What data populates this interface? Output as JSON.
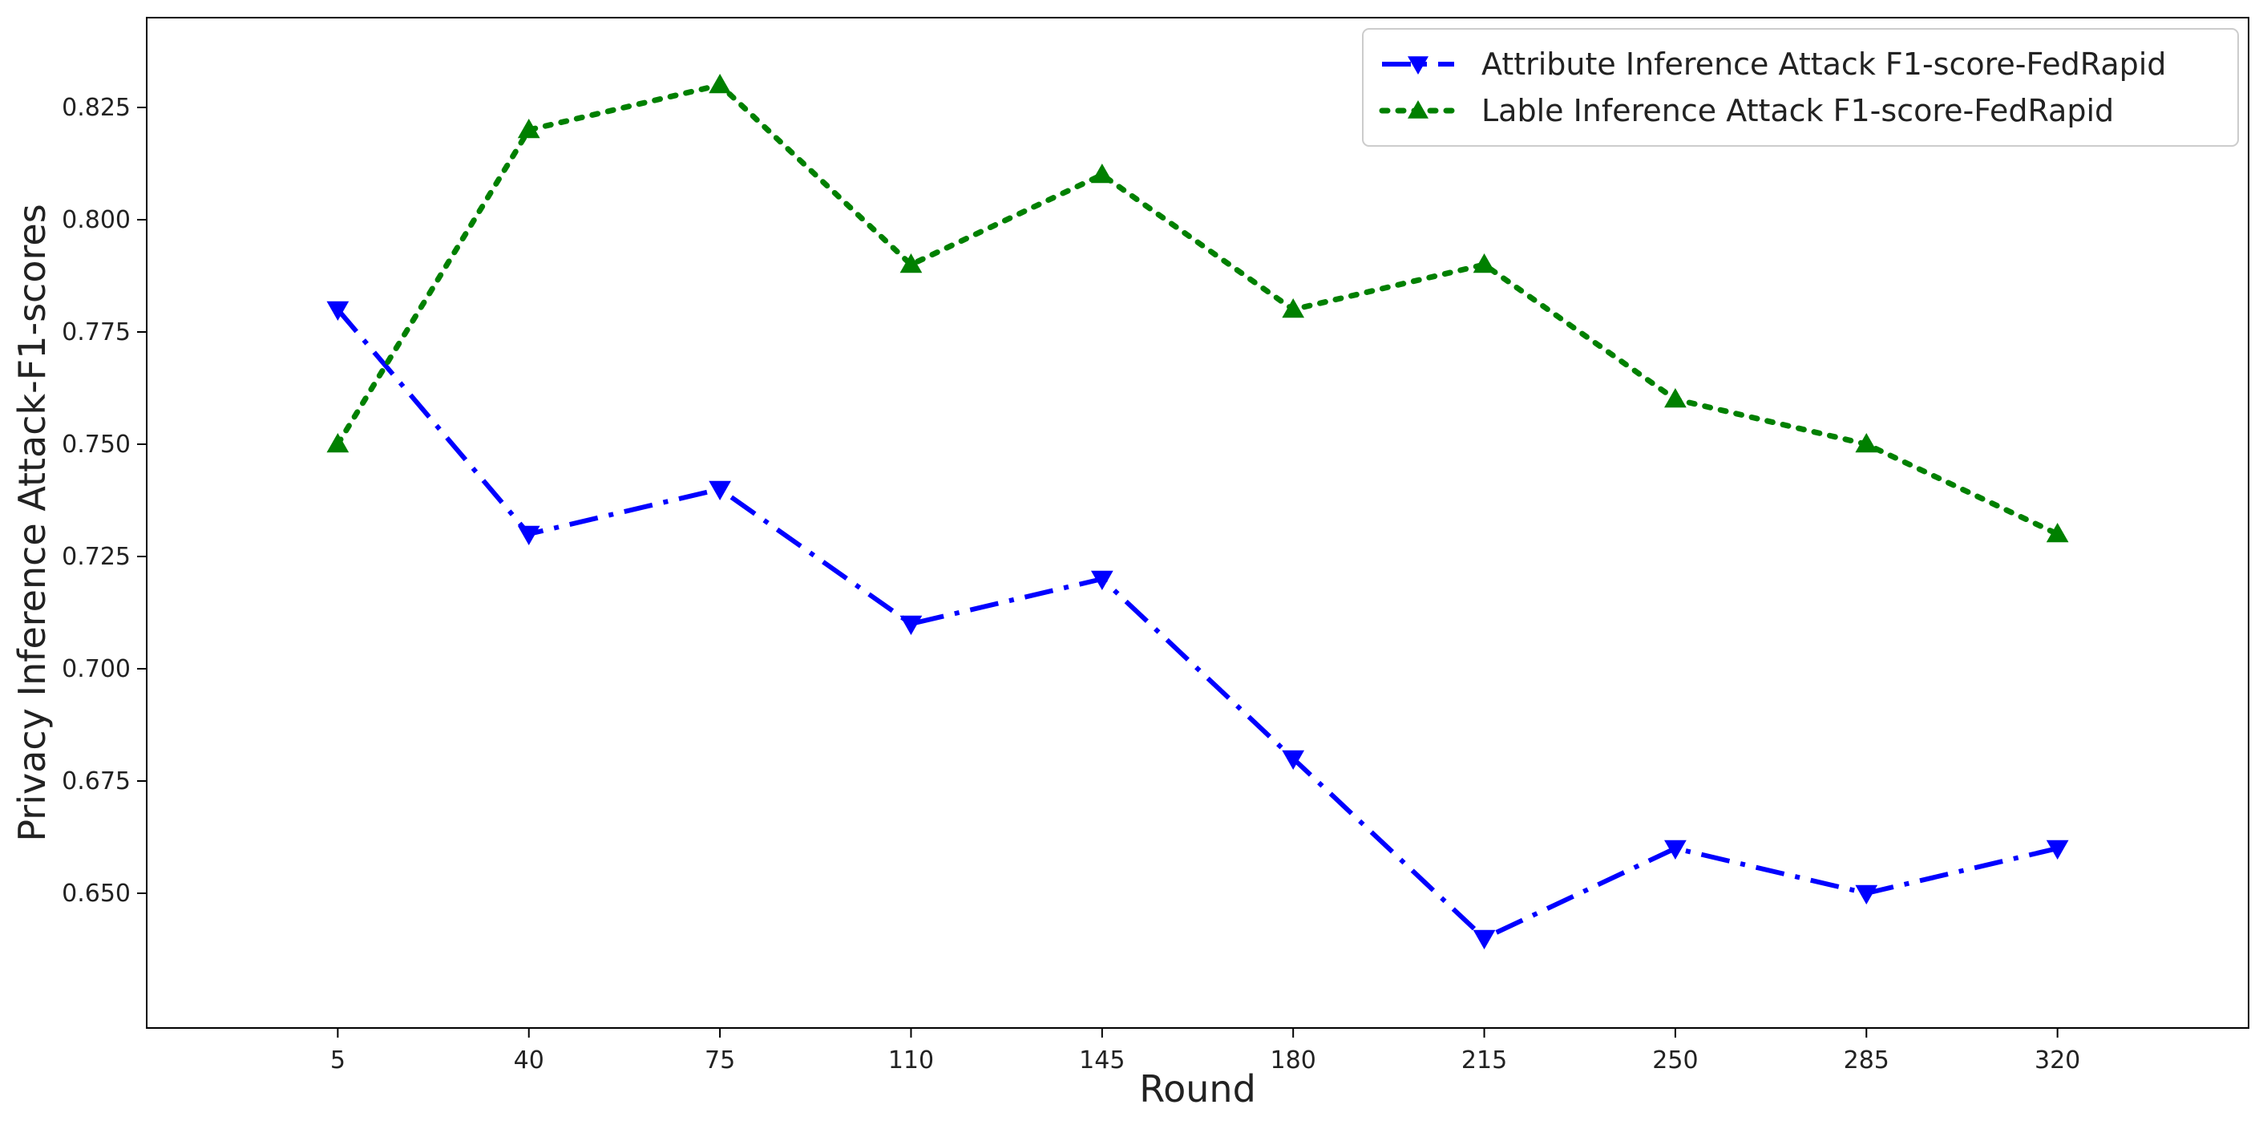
{
  "chart_data": {
    "type": "line",
    "title": "",
    "xlabel": "Round",
    "ylabel": "Privacy Inference Attack-F1-scores",
    "categories": [
      "5",
      "40",
      "75",
      "110",
      "145",
      "180",
      "215",
      "250",
      "285",
      "320"
    ],
    "x": [
      5,
      40,
      75,
      110,
      145,
      180,
      215,
      250,
      285,
      320
    ],
    "xlim": [
      -30,
      355
    ],
    "ylim": [
      0.62,
      0.845
    ],
    "yticks": [
      0.65,
      0.675,
      0.7,
      0.725,
      0.75,
      0.775,
      0.8,
      0.825
    ],
    "ytick_labels": [
      "0.650",
      "0.675",
      "0.700",
      "0.725",
      "0.750",
      "0.775",
      "0.800",
      "0.825"
    ],
    "grid": false,
    "legend_position": "top-right",
    "series": [
      {
        "name": "Attribute Inference Attack F1-score-FedRapid",
        "values": [
          0.78,
          0.73,
          0.74,
          0.71,
          0.72,
          0.68,
          0.64,
          0.66,
          0.65,
          0.66
        ],
        "color": "#0000ff",
        "line_style": "dashdot",
        "marker": "triangle-down"
      },
      {
        "name": "Lable Inference Attack F1-score-FedRapid",
        "values": [
          0.75,
          0.82,
          0.83,
          0.79,
          0.81,
          0.78,
          0.79,
          0.76,
          0.75,
          0.73
        ],
        "color": "#008000",
        "line_style": "dotted",
        "marker": "triangle-up"
      }
    ]
  }
}
